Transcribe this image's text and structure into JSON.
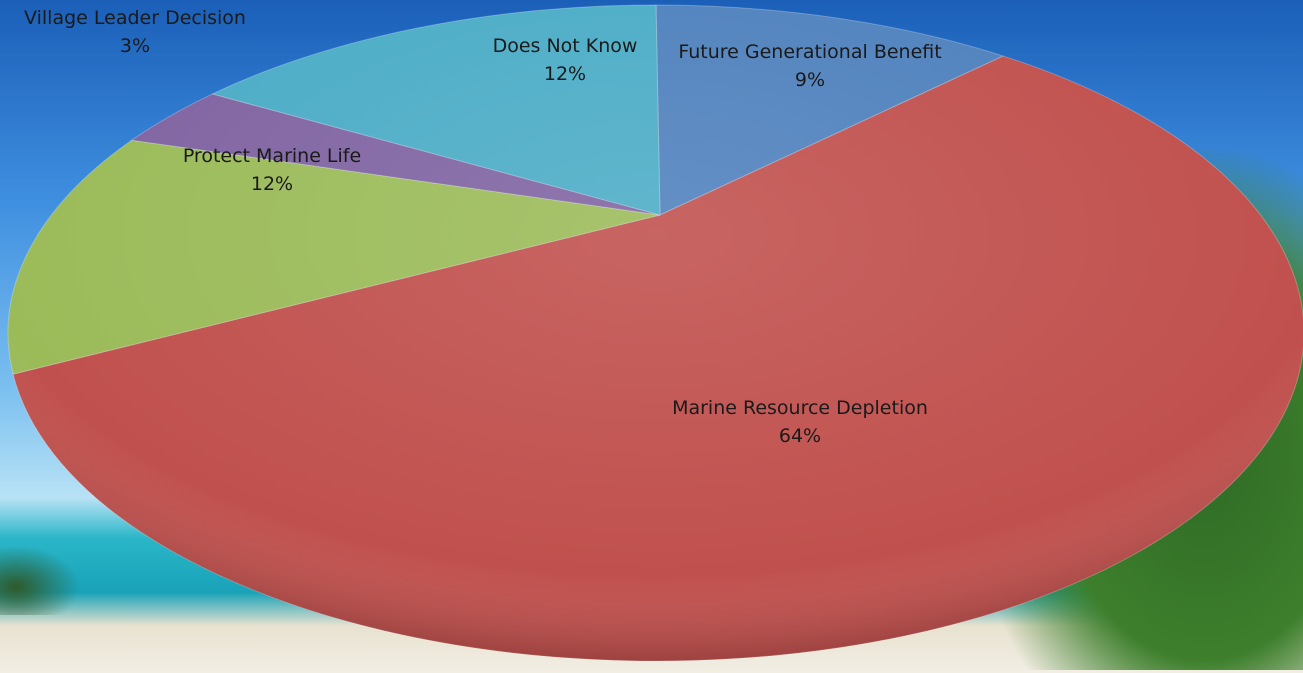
{
  "chart_data": {
    "type": "pie",
    "categories": [
      "Future Generational Benefit",
      "Marine Resource Depletion",
      "Protect Marine Life",
      "Village Leader Decision",
      "Does Not Know"
    ],
    "values": [
      9,
      64,
      12,
      3,
      12
    ],
    "value_labels": [
      "9%",
      "64%",
      "12%",
      "3%",
      "12%"
    ],
    "colors": [
      "#4f81bd",
      "#c0504d",
      "#9bbb59",
      "#8064a2",
      "#4bacc6"
    ]
  }
}
